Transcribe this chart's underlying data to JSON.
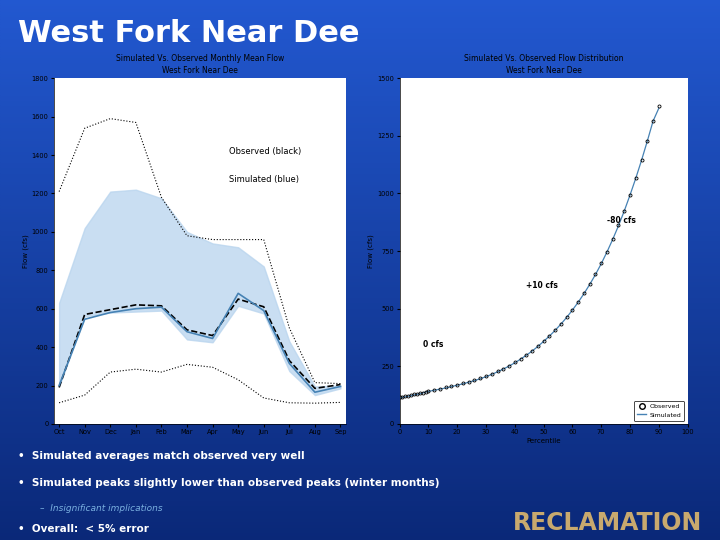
{
  "title": "West Fork Near Dee",
  "title_color": "#ffffff",
  "title_fontsize": 22,
  "chart1_title": "Simulated Vs. Observed Monthly Mean Flow\nWest Fork Near Dee",
  "chart1_ylabel": "Flow (cfs)",
  "chart1_months": [
    "Oct",
    "Nov",
    "Dec",
    "Jan",
    "Feb",
    "Mar",
    "Apr",
    "May",
    "Jun",
    "Jul",
    "Aug",
    "Sep"
  ],
  "chart1_obs_mean": [
    190,
    570,
    595,
    620,
    615,
    490,
    460,
    650,
    610,
    330,
    185,
    205
  ],
  "chart1_sim_mean": [
    200,
    545,
    580,
    600,
    608,
    480,
    445,
    680,
    590,
    315,
    165,
    195
  ],
  "chart1_obs_upper": [
    1210,
    1540,
    1590,
    1570,
    1180,
    980,
    960,
    960,
    960,
    500,
    215,
    210
  ],
  "chart1_obs_lower": [
    110,
    150,
    270,
    285,
    270,
    310,
    295,
    230,
    135,
    110,
    108,
    112
  ],
  "chart1_sim_upper": [
    630,
    1020,
    1210,
    1220,
    1175,
    1000,
    940,
    920,
    820,
    430,
    195,
    200
  ],
  "chart1_sim_lower": [
    195,
    560,
    580,
    585,
    590,
    440,
    425,
    615,
    575,
    275,
    150,
    185
  ],
  "chart1_ylim": [
    0,
    1800
  ],
  "chart2_title": "Simulated Vs. Observed Flow Distribution\nWest Fork Near Dee",
  "chart2_xlabel": "Percentile",
  "chart2_ylabel": "Flow (cfs)",
  "chart2_percentiles": [
    0,
    1,
    2,
    3,
    4,
    5,
    6,
    7,
    8,
    9,
    10,
    12,
    14,
    16,
    18,
    20,
    22,
    24,
    26,
    28,
    30,
    32,
    34,
    36,
    38,
    40,
    42,
    44,
    46,
    48,
    50,
    52,
    54,
    56,
    58,
    60,
    62,
    64,
    66,
    68,
    70,
    72,
    74,
    76,
    78,
    80,
    82,
    84,
    86,
    88,
    90
  ],
  "chart2_obs": [
    115,
    118,
    120,
    122,
    125,
    128,
    130,
    133,
    136,
    140,
    143,
    148,
    153,
    158,
    164,
    170,
    176,
    183,
    190,
    198,
    207,
    217,
    228,
    240,
    253,
    267,
    283,
    300,
    318,
    338,
    360,
    383,
    408,
    435,
    464,
    496,
    530,
    567,
    607,
    650,
    697,
    748,
    803,
    862,
    926,
    995,
    1068,
    1146,
    1229,
    1316,
    1380
  ],
  "chart2_sim": [
    112,
    115,
    118,
    120,
    123,
    126,
    128,
    131,
    134,
    138,
    141,
    146,
    151,
    156,
    162,
    168,
    174,
    181,
    188,
    196,
    205,
    215,
    226,
    238,
    251,
    265,
    281,
    298,
    316,
    336,
    358,
    381,
    406,
    433,
    462,
    494,
    528,
    565,
    605,
    648,
    695,
    746,
    801,
    860,
    924,
    993,
    1066,
    1144,
    1227,
    1314,
    1370
  ],
  "chart2_ylim": [
    0,
    1500
  ],
  "chart2_xlim": [
    0,
    100
  ],
  "label_observed": "Observed (black)",
  "label_simulated": "Simulated (blue)",
  "annotation_neg80": "-80 cfs",
  "annotation_plus10": "+10 cfs",
  "annotation_0": "0 cfs",
  "bullet1": "Simulated averages match observed very well",
  "bullet2": "Simulated peaks slightly lower than observed peaks (winter months)",
  "sub_bullet": "Insignificant implications",
  "bullet3": "Overall:  < 5% error",
  "reclamation_text": "RECLAMATION",
  "reclamation_color": "#c8a96e",
  "bullet_color": "#ffffff",
  "sub_bullet_color": "#7ab0e0"
}
